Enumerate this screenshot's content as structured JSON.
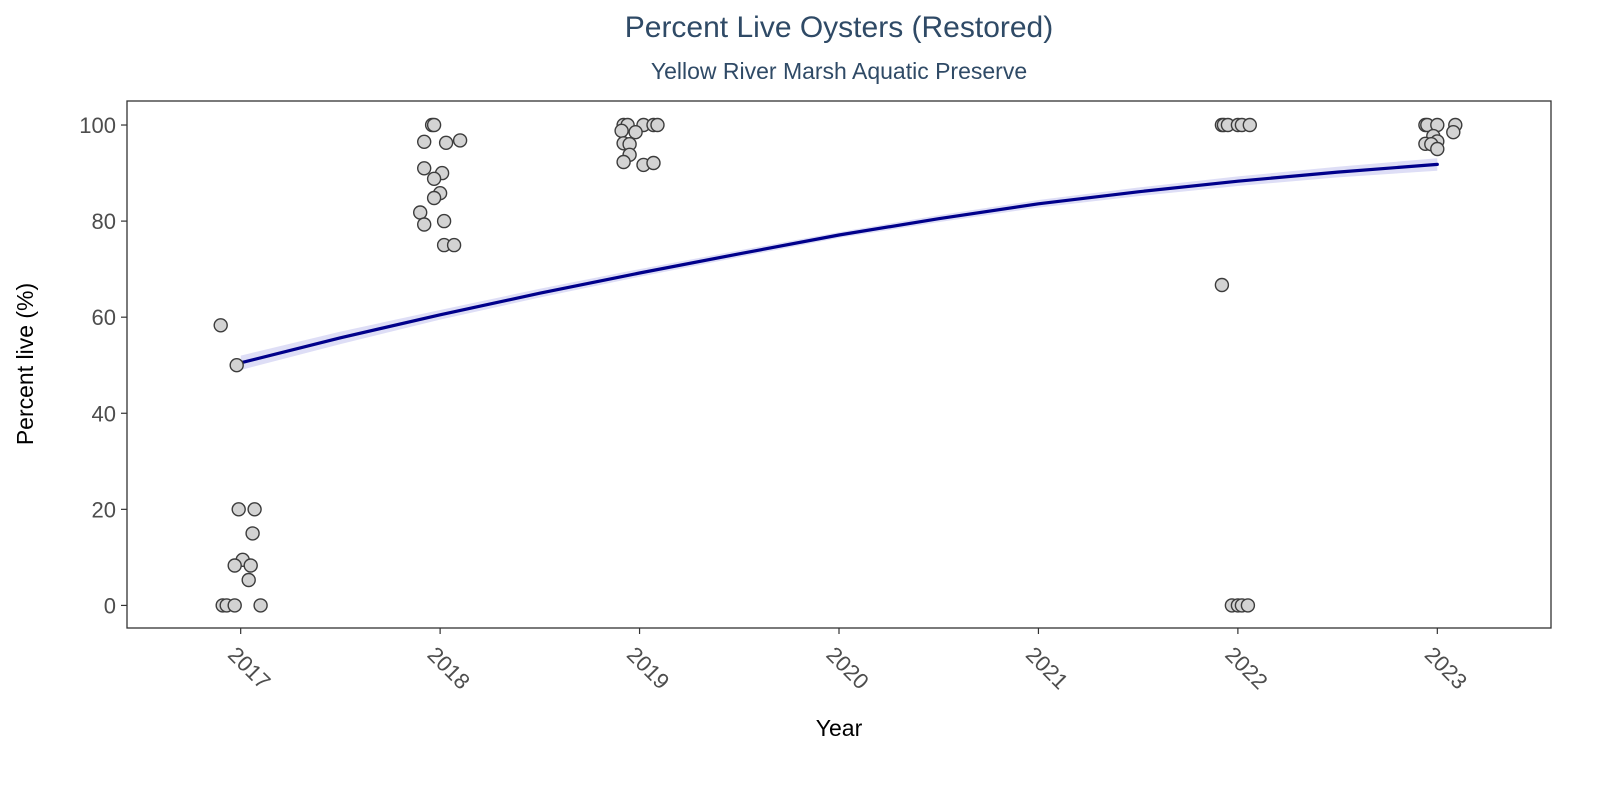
{
  "chart_data": {
    "type": "scatter",
    "title": "Percent Live Oysters (Restored)",
    "subtitle": "Yellow River Marsh Aquatic Preserve",
    "xlabel": "Year",
    "ylabel": "Percent live (%)",
    "xlim": [
      2016.43,
      2023.57
    ],
    "ylim": [
      -4.7,
      105
    ],
    "x_ticks": [
      2017,
      2018,
      2019,
      2020,
      2021,
      2022,
      2023
    ],
    "y_ticks": [
      0,
      20,
      40,
      60,
      80,
      100
    ],
    "grid": false,
    "legend": "none",
    "colors": {
      "point_fill": "#d3d3d3",
      "point_stroke": "#3c3c3c",
      "trend_line": "#00008b",
      "trend_band": "#c8c8f0",
      "title": "#2f4a66",
      "frame": "#333333"
    },
    "points": [
      {
        "x": 2016.9,
        "y": 58.3
      },
      {
        "x": 2016.98,
        "y": 50.0
      },
      {
        "x": 2016.99,
        "y": 20.0
      },
      {
        "x": 2017.07,
        "y": 20.0
      },
      {
        "x": 2017.06,
        "y": 15.0
      },
      {
        "x": 2017.01,
        "y": 9.5
      },
      {
        "x": 2016.97,
        "y": 8.3
      },
      {
        "x": 2017.05,
        "y": 8.3
      },
      {
        "x": 2017.04,
        "y": 5.3
      },
      {
        "x": 2016.91,
        "y": 0
      },
      {
        "x": 2016.93,
        "y": 0
      },
      {
        "x": 2016.97,
        "y": 0
      },
      {
        "x": 2017.1,
        "y": 0
      },
      {
        "x": 2017.96,
        "y": 100
      },
      {
        "x": 2017.97,
        "y": 100
      },
      {
        "x": 2017.92,
        "y": 96.5
      },
      {
        "x": 2018.03,
        "y": 96.3
      },
      {
        "x": 2018.1,
        "y": 96.8
      },
      {
        "x": 2017.92,
        "y": 91.0
      },
      {
        "x": 2018.01,
        "y": 90.0
      },
      {
        "x": 2017.97,
        "y": 88.8
      },
      {
        "x": 2018.0,
        "y": 85.8
      },
      {
        "x": 2017.97,
        "y": 84.8
      },
      {
        "x": 2017.9,
        "y": 81.8
      },
      {
        "x": 2018.02,
        "y": 80.0
      },
      {
        "x": 2017.92,
        "y": 79.3
      },
      {
        "x": 2018.02,
        "y": 75.0
      },
      {
        "x": 2018.07,
        "y": 75.0
      },
      {
        "x": 2018.92,
        "y": 100
      },
      {
        "x": 2018.94,
        "y": 100
      },
      {
        "x": 2019.02,
        "y": 100
      },
      {
        "x": 2019.07,
        "y": 100
      },
      {
        "x": 2019.09,
        "y": 100
      },
      {
        "x": 2018.91,
        "y": 98.8
      },
      {
        "x": 2018.98,
        "y": 98.5
      },
      {
        "x": 2018.92,
        "y": 96.2
      },
      {
        "x": 2018.95,
        "y": 96.0
      },
      {
        "x": 2018.95,
        "y": 93.8
      },
      {
        "x": 2018.92,
        "y": 92.3
      },
      {
        "x": 2019.02,
        "y": 91.7
      },
      {
        "x": 2019.07,
        "y": 92.1
      },
      {
        "x": 2021.92,
        "y": 100
      },
      {
        "x": 2021.93,
        "y": 100
      },
      {
        "x": 2021.95,
        "y": 100
      },
      {
        "x": 2022.0,
        "y": 100
      },
      {
        "x": 2022.02,
        "y": 100
      },
      {
        "x": 2022.06,
        "y": 100
      },
      {
        "x": 2021.92,
        "y": 66.7
      },
      {
        "x": 2021.97,
        "y": 0
      },
      {
        "x": 2022.0,
        "y": 0
      },
      {
        "x": 2022.02,
        "y": 0
      },
      {
        "x": 2022.05,
        "y": 0
      },
      {
        "x": 2022.94,
        "y": 100
      },
      {
        "x": 2022.95,
        "y": 100
      },
      {
        "x": 2023.0,
        "y": 100
      },
      {
        "x": 2023.09,
        "y": 100
      },
      {
        "x": 2023.08,
        "y": 98.5
      },
      {
        "x": 2022.98,
        "y": 97.7
      },
      {
        "x": 2023.0,
        "y": 96.6
      },
      {
        "x": 2022.94,
        "y": 96.1
      },
      {
        "x": 2022.97,
        "y": 96.0
      },
      {
        "x": 2023.0,
        "y": 95.0
      }
    ],
    "trend": {
      "x": [
        2017.0,
        2017.5,
        2018.0,
        2018.5,
        2019.0,
        2019.5,
        2020.0,
        2020.5,
        2021.0,
        2021.5,
        2022.0,
        2022.5,
        2023.0
      ],
      "y": [
        50.5,
        55.7,
        60.5,
        65.0,
        69.2,
        73.2,
        77.1,
        80.5,
        83.6,
        86.1,
        88.3,
        90.2,
        91.8
      ],
      "band_width": [
        1.5,
        1.3,
        1.0,
        0.9,
        0.8,
        0.7,
        0.6,
        0.7,
        0.8,
        0.9,
        1.0,
        1.1,
        1.3
      ]
    }
  }
}
